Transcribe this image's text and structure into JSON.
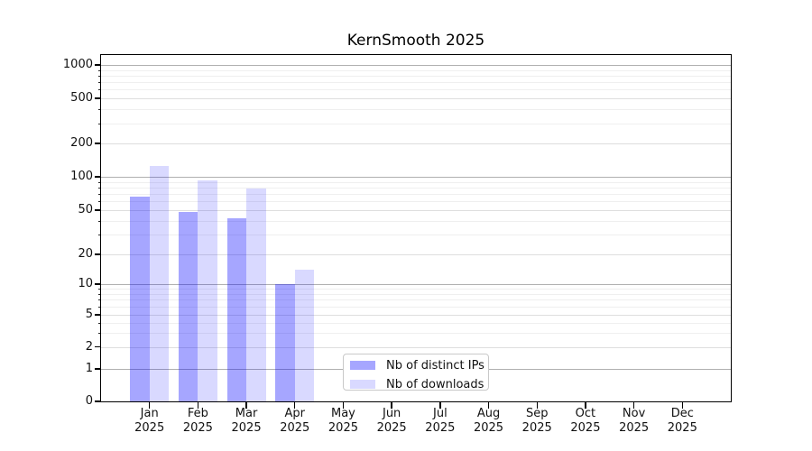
{
  "chart_data": {
    "type": "bar",
    "title": "KernSmooth 2025",
    "year": "2025",
    "categories": [
      "Jan",
      "Feb",
      "Mar",
      "Apr",
      "May",
      "Jun",
      "Jul",
      "Aug",
      "Sep",
      "Oct",
      "Nov",
      "Dec"
    ],
    "series": [
      {
        "name": "Nb of distinct IPs",
        "color": "rgba(0,0,255,0.35)",
        "values": [
          66,
          48,
          42,
          10,
          null,
          null,
          null,
          null,
          null,
          null,
          null,
          null
        ]
      },
      {
        "name": "Nb of downloads",
        "color": "rgba(0,0,255,0.15)",
        "values": [
          125,
          93,
          79,
          14,
          null,
          null,
          null,
          null,
          null,
          null,
          null,
          null
        ]
      }
    ],
    "y_axis": {
      "scale": "log-like with zero baseline",
      "tick_values": [
        0,
        1,
        2,
        5,
        10,
        20,
        50,
        100,
        200,
        500,
        1000
      ],
      "tick_labels": [
        "0",
        "1",
        "2",
        "5",
        "10",
        "20",
        "50",
        "100",
        "200",
        "500",
        "1000"
      ],
      "range": [
        0,
        1000
      ]
    },
    "x_axis": {
      "tick_label_line2": "2025"
    },
    "grid": true,
    "legend_position": "inside-bottom-center"
  },
  "colors": {
    "axis": "#000000",
    "grid_decade": "#b0b0b0",
    "grid_labeled": "#dedede",
    "grid_minor": "#efefef",
    "background": "#ffffff"
  }
}
